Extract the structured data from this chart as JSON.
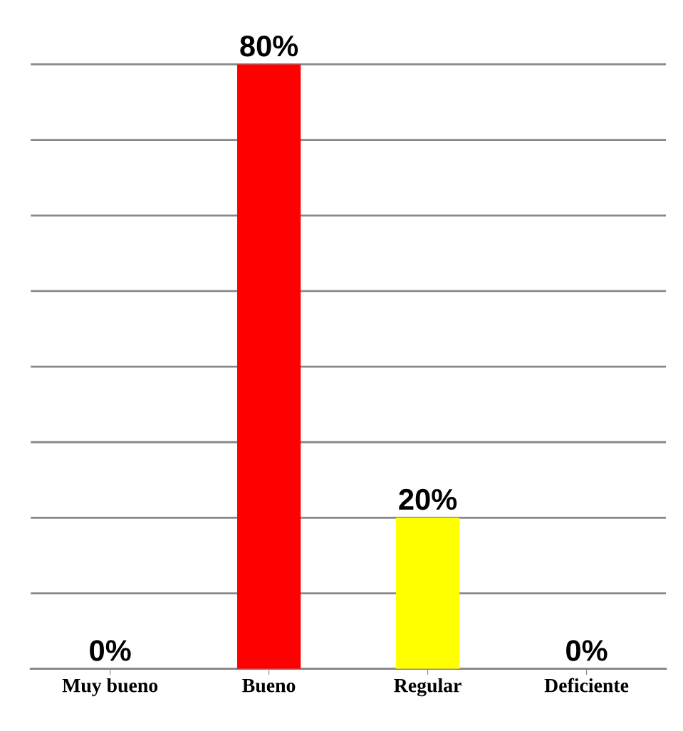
{
  "chart_data": {
    "type": "bar",
    "categories": [
      "Muy bueno",
      "Bueno",
      "Regular",
      "Deficiente"
    ],
    "values": [
      0,
      80,
      20,
      0
    ],
    "colors": [
      "#3a6496",
      "#ff0000",
      "#ffff00",
      "#3a6496"
    ],
    "value_labels": [
      "0%",
      "80%",
      "20%",
      "0%"
    ],
    "ylim": [
      0,
      80
    ],
    "yticks": [
      {
        "value": 0,
        "label": null
      },
      {
        "value": 10,
        "label": null
      },
      {
        "value": 20,
        "label": null
      },
      {
        "value": 30,
        "label": null
      },
      {
        "value": 40,
        "label": null
      },
      {
        "value": 50,
        "label": null
      },
      {
        "value": 60,
        "label": null
      },
      {
        "value": 70,
        "label": null
      },
      {
        "value": 80,
        "label": null
      }
    ],
    "grid": "y",
    "tick_labels": "x"
  }
}
